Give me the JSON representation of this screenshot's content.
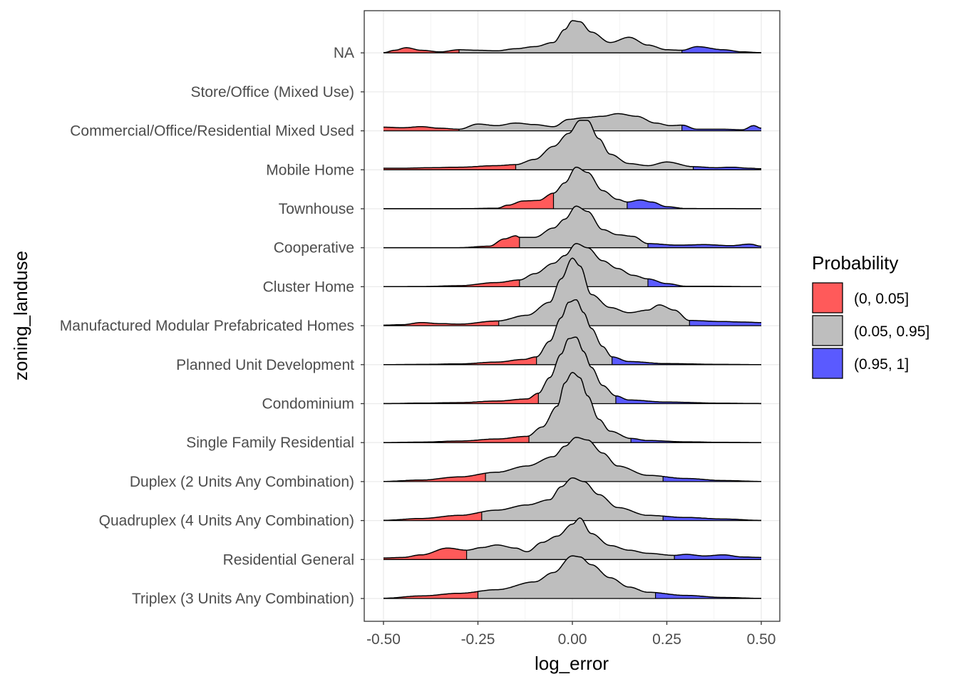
{
  "chart_data": {
    "type": "ridgeline",
    "xlabel": "log_error",
    "ylabel": "zoning_landuse",
    "xlim": [
      -0.5,
      0.5
    ],
    "x_ticks": [
      "-0.50",
      "-0.25",
      "0.00",
      "0.25",
      "0.50"
    ],
    "x_tick_values": [
      -0.5,
      -0.25,
      0,
      0.25,
      0.5
    ],
    "grid": true,
    "categories": [
      "Triplex (3 Units Any Combination)",
      "Residential General",
      "Quadruplex (4 Units Any Combination)",
      "Duplex (2 Units Any Combination)",
      "Single Family Residential",
      "Condominium",
      "Planned Unit Development",
      "Manufactured Modular Prefabricated Homes",
      "Cluster Home",
      "Cooperative",
      "Townhouse",
      "Mobile Home",
      "Commercial/Office/Residential Mixed Used",
      "Store/Office (Mixed Use)",
      "NA"
    ],
    "legend": {
      "title": "Probability",
      "placement": "right",
      "entries": [
        {
          "label": "(0, 0.05]",
          "color": "#ff5a5a"
        },
        {
          "label": "(0.05, 0.95]",
          "color": "#bebebe"
        },
        {
          "label": "(0.95, 1]",
          "color": "#5a5aff"
        }
      ]
    },
    "colors": {
      "low": "#ff5a5a",
      "mid": "#bebebe",
      "high": "#5a5aff"
    },
    "series": [
      {
        "name": "Triplex (3 Units Any Combination)",
        "q05": -0.25,
        "q95": 0.22,
        "density": [
          [
            -0.5,
            0.005
          ],
          [
            -0.4,
            0.05
          ],
          [
            -0.3,
            0.1
          ],
          [
            -0.2,
            0.17
          ],
          [
            -0.1,
            0.32
          ],
          [
            -0.05,
            0.5
          ],
          [
            0.0,
            0.82
          ],
          [
            0.02,
            0.8
          ],
          [
            0.05,
            0.65
          ],
          [
            0.1,
            0.4
          ],
          [
            0.15,
            0.22
          ],
          [
            0.2,
            0.12
          ],
          [
            0.3,
            0.06
          ],
          [
            0.4,
            0.02
          ],
          [
            0.5,
            0.003
          ]
        ]
      },
      {
        "name": "Residential General",
        "q05": -0.28,
        "q95": 0.27,
        "density": [
          [
            -0.5,
            0.03
          ],
          [
            -0.45,
            0.04
          ],
          [
            -0.4,
            0.09
          ],
          [
            -0.33,
            0.22
          ],
          [
            -0.28,
            0.18
          ],
          [
            -0.24,
            0.23
          ],
          [
            -0.2,
            0.28
          ],
          [
            -0.15,
            0.22
          ],
          [
            -0.12,
            0.15
          ],
          [
            -0.08,
            0.33
          ],
          [
            -0.04,
            0.45
          ],
          [
            0.0,
            0.68
          ],
          [
            0.02,
            0.8
          ],
          [
            0.05,
            0.5
          ],
          [
            0.1,
            0.27
          ],
          [
            0.15,
            0.18
          ],
          [
            0.2,
            0.12
          ],
          [
            0.27,
            0.08
          ],
          [
            0.3,
            0.1
          ],
          [
            0.35,
            0.07
          ],
          [
            0.4,
            0.09
          ],
          [
            0.45,
            0.05
          ],
          [
            0.5,
            0.04
          ]
        ]
      },
      {
        "name": "Quadruplex (4 Units Any Combination)",
        "q05": -0.24,
        "q95": 0.24,
        "density": [
          [
            -0.5,
            0.005
          ],
          [
            -0.4,
            0.04
          ],
          [
            -0.3,
            0.1
          ],
          [
            -0.2,
            0.2
          ],
          [
            -0.12,
            0.3
          ],
          [
            -0.06,
            0.4
          ],
          [
            -0.03,
            0.65
          ],
          [
            0.0,
            0.82
          ],
          [
            0.03,
            0.75
          ],
          [
            0.07,
            0.5
          ],
          [
            0.12,
            0.25
          ],
          [
            0.2,
            0.1
          ],
          [
            0.3,
            0.06
          ],
          [
            0.4,
            0.03
          ],
          [
            0.5,
            0.003
          ]
        ]
      },
      {
        "name": "Duplex (2 Units Any Combination)",
        "q05": -0.23,
        "q95": 0.24,
        "density": [
          [
            -0.5,
            0.003
          ],
          [
            -0.4,
            0.03
          ],
          [
            -0.3,
            0.09
          ],
          [
            -0.2,
            0.18
          ],
          [
            -0.12,
            0.3
          ],
          [
            -0.05,
            0.48
          ],
          [
            -0.02,
            0.68
          ],
          [
            0.01,
            0.85
          ],
          [
            0.04,
            0.8
          ],
          [
            0.08,
            0.55
          ],
          [
            0.12,
            0.3
          ],
          [
            0.2,
            0.12
          ],
          [
            0.3,
            0.06
          ],
          [
            0.4,
            0.02
          ],
          [
            0.5,
            0.003
          ]
        ]
      },
      {
        "name": "Single Family Residential",
        "q05": -0.115,
        "q95": 0.155,
        "density": [
          [
            -0.5,
            0.001
          ],
          [
            -0.4,
            0.01
          ],
          [
            -0.3,
            0.03
          ],
          [
            -0.2,
            0.07
          ],
          [
            -0.12,
            0.12
          ],
          [
            -0.08,
            0.3
          ],
          [
            -0.04,
            0.7
          ],
          [
            -0.02,
            1.15
          ],
          [
            0.0,
            1.35
          ],
          [
            0.02,
            1.25
          ],
          [
            0.04,
            0.9
          ],
          [
            0.07,
            0.45
          ],
          [
            0.1,
            0.22
          ],
          [
            0.155,
            0.08
          ],
          [
            0.2,
            0.04
          ],
          [
            0.3,
            0.015
          ],
          [
            0.4,
            0.005
          ],
          [
            0.5,
            0.001
          ]
        ]
      },
      {
        "name": "Condominium",
        "q05": -0.09,
        "q95": 0.115,
        "density": [
          [
            -0.5,
            0.001
          ],
          [
            -0.4,
            0.01
          ],
          [
            -0.3,
            0.02
          ],
          [
            -0.2,
            0.05
          ],
          [
            -0.12,
            0.09
          ],
          [
            -0.09,
            0.2
          ],
          [
            -0.06,
            0.5
          ],
          [
            -0.03,
            0.95
          ],
          [
            -0.01,
            1.25
          ],
          [
            0.01,
            1.28
          ],
          [
            0.03,
            1.0
          ],
          [
            0.05,
            0.7
          ],
          [
            0.08,
            0.35
          ],
          [
            0.115,
            0.15
          ],
          [
            0.15,
            0.07
          ],
          [
            0.25,
            0.03
          ],
          [
            0.4,
            0.008
          ],
          [
            0.5,
            0.002
          ]
        ]
      },
      {
        "name": "Planned Unit Development",
        "q05": -0.095,
        "q95": 0.105,
        "density": [
          [
            -0.5,
            0.001
          ],
          [
            -0.4,
            0.005
          ],
          [
            -0.3,
            0.015
          ],
          [
            -0.2,
            0.05
          ],
          [
            -0.13,
            0.1
          ],
          [
            -0.095,
            0.15
          ],
          [
            -0.06,
            0.45
          ],
          [
            -0.03,
            0.9
          ],
          [
            -0.01,
            1.2
          ],
          [
            0.01,
            1.25
          ],
          [
            0.03,
            1.0
          ],
          [
            0.05,
            0.7
          ],
          [
            0.08,
            0.35
          ],
          [
            0.105,
            0.15
          ],
          [
            0.15,
            0.06
          ],
          [
            0.25,
            0.02
          ],
          [
            0.4,
            0.005
          ],
          [
            0.5,
            0.001
          ]
        ]
      },
      {
        "name": "Manufactured Modular Prefabricated Homes",
        "q05": -0.195,
        "q95": 0.31,
        "density": [
          [
            -0.5,
            0.01
          ],
          [
            -0.45,
            0.02
          ],
          [
            -0.4,
            0.06
          ],
          [
            -0.35,
            0.04
          ],
          [
            -0.3,
            0.03
          ],
          [
            -0.2,
            0.09
          ],
          [
            -0.12,
            0.2
          ],
          [
            -0.06,
            0.45
          ],
          [
            -0.03,
            0.9
          ],
          [
            0.0,
            1.3
          ],
          [
            0.02,
            1.15
          ],
          [
            0.05,
            0.6
          ],
          [
            0.1,
            0.35
          ],
          [
            0.15,
            0.25
          ],
          [
            0.2,
            0.3
          ],
          [
            0.23,
            0.4
          ],
          [
            0.27,
            0.3
          ],
          [
            0.31,
            0.1
          ],
          [
            0.4,
            0.08
          ],
          [
            0.45,
            0.07
          ],
          [
            0.5,
            0.06
          ]
        ]
      },
      {
        "name": "Cluster Home",
        "q05": -0.14,
        "q95": 0.2,
        "density": [
          [
            -0.5,
            0.002
          ],
          [
            -0.4,
            0.004
          ],
          [
            -0.3,
            0.02
          ],
          [
            -0.2,
            0.08
          ],
          [
            -0.14,
            0.13
          ],
          [
            -0.1,
            0.25
          ],
          [
            -0.05,
            0.45
          ],
          [
            -0.02,
            0.6
          ],
          [
            0.01,
            0.83
          ],
          [
            0.04,
            0.75
          ],
          [
            0.08,
            0.5
          ],
          [
            0.12,
            0.35
          ],
          [
            0.16,
            0.22
          ],
          [
            0.2,
            0.15
          ],
          [
            0.25,
            0.06
          ],
          [
            0.3,
            0.01
          ],
          [
            0.5,
            0.002
          ]
        ]
      },
      {
        "name": "Cooperative",
        "q05": -0.14,
        "q95": 0.2,
        "density": [
          [
            -0.5,
            0.001
          ],
          [
            -0.3,
            0.002
          ],
          [
            -0.22,
            0.03
          ],
          [
            -0.18,
            0.17
          ],
          [
            -0.15,
            0.23
          ],
          [
            -0.14,
            0.2
          ],
          [
            -0.1,
            0.2
          ],
          [
            -0.05,
            0.38
          ],
          [
            -0.02,
            0.55
          ],
          [
            0.01,
            0.8
          ],
          [
            0.04,
            0.7
          ],
          [
            0.08,
            0.35
          ],
          [
            0.12,
            0.25
          ],
          [
            0.16,
            0.22
          ],
          [
            0.2,
            0.08
          ],
          [
            0.28,
            0.05
          ],
          [
            0.35,
            0.06
          ],
          [
            0.42,
            0.04
          ],
          [
            0.47,
            0.07
          ],
          [
            0.5,
            0.03
          ]
        ]
      },
      {
        "name": "Townhouse",
        "q05": -0.05,
        "q95": 0.145,
        "density": [
          [
            -0.5,
            0.001
          ],
          [
            -0.3,
            0.002
          ],
          [
            -0.2,
            0.01
          ],
          [
            -0.17,
            0.07
          ],
          [
            -0.13,
            0.15
          ],
          [
            -0.09,
            0.16
          ],
          [
            -0.05,
            0.3
          ],
          [
            -0.02,
            0.5
          ],
          [
            0.01,
            0.8
          ],
          [
            0.04,
            0.7
          ],
          [
            0.08,
            0.35
          ],
          [
            0.12,
            0.18
          ],
          [
            0.145,
            0.13
          ],
          [
            0.18,
            0.17
          ],
          [
            0.21,
            0.13
          ],
          [
            0.25,
            0.04
          ],
          [
            0.3,
            0.005
          ],
          [
            0.5,
            0.001
          ]
        ]
      },
      {
        "name": "Mobile Home",
        "q05": -0.15,
        "q95": 0.32,
        "density": [
          [
            -0.5,
            0.03
          ],
          [
            -0.45,
            0.03
          ],
          [
            -0.38,
            0.04
          ],
          [
            -0.3,
            0.05
          ],
          [
            -0.2,
            0.08
          ],
          [
            -0.15,
            0.1
          ],
          [
            -0.1,
            0.2
          ],
          [
            -0.05,
            0.45
          ],
          [
            -0.01,
            0.7
          ],
          [
            0.02,
            0.95
          ],
          [
            0.04,
            0.95
          ],
          [
            0.07,
            0.6
          ],
          [
            0.1,
            0.3
          ],
          [
            0.15,
            0.12
          ],
          [
            0.2,
            0.08
          ],
          [
            0.25,
            0.15
          ],
          [
            0.32,
            0.06
          ],
          [
            0.38,
            0.04
          ],
          [
            0.42,
            0.05
          ],
          [
            0.47,
            0.03
          ],
          [
            0.5,
            0.02
          ]
        ]
      },
      {
        "name": "Commercial/Office/Residential Mixed Used",
        "q05": -0.3,
        "q95": 0.29,
        "density": [
          [
            -0.5,
            0.07
          ],
          [
            -0.45,
            0.06
          ],
          [
            -0.4,
            0.08
          ],
          [
            -0.35,
            0.05
          ],
          [
            -0.3,
            0.03
          ],
          [
            -0.25,
            0.13
          ],
          [
            -0.2,
            0.1
          ],
          [
            -0.15,
            0.15
          ],
          [
            -0.1,
            0.12
          ],
          [
            -0.05,
            0.08
          ],
          [
            -0.01,
            0.22
          ],
          [
            0.03,
            0.25
          ],
          [
            0.08,
            0.28
          ],
          [
            0.12,
            0.33
          ],
          [
            0.17,
            0.28
          ],
          [
            0.22,
            0.15
          ],
          [
            0.26,
            0.1
          ],
          [
            0.29,
            0.11
          ],
          [
            0.33,
            0.03
          ],
          [
            0.4,
            0.03
          ],
          [
            0.45,
            0.02
          ],
          [
            0.48,
            0.1
          ],
          [
            0.5,
            0.05
          ]
        ]
      },
      {
        "name": "Store/Office (Mixed Use)",
        "q05": null,
        "q95": null,
        "density": []
      },
      {
        "name": "NA",
        "q05": -0.3,
        "q95": 0.29,
        "density": [
          [
            -0.5,
            0.005
          ],
          [
            -0.47,
            0.05
          ],
          [
            -0.44,
            0.1
          ],
          [
            -0.4,
            0.05
          ],
          [
            -0.35,
            0.02
          ],
          [
            -0.3,
            0.06
          ],
          [
            -0.25,
            0.05
          ],
          [
            -0.2,
            0.04
          ],
          [
            -0.15,
            0.08
          ],
          [
            -0.1,
            0.12
          ],
          [
            -0.05,
            0.2
          ],
          [
            -0.02,
            0.45
          ],
          [
            0.0,
            0.62
          ],
          [
            0.02,
            0.6
          ],
          [
            0.05,
            0.4
          ],
          [
            0.1,
            0.2
          ],
          [
            0.15,
            0.3
          ],
          [
            0.2,
            0.15
          ],
          [
            0.25,
            0.06
          ],
          [
            0.29,
            0.05
          ],
          [
            0.33,
            0.12
          ],
          [
            0.4,
            0.06
          ],
          [
            0.45,
            0.02
          ],
          [
            0.5,
            0.005
          ]
        ]
      }
    ]
  }
}
